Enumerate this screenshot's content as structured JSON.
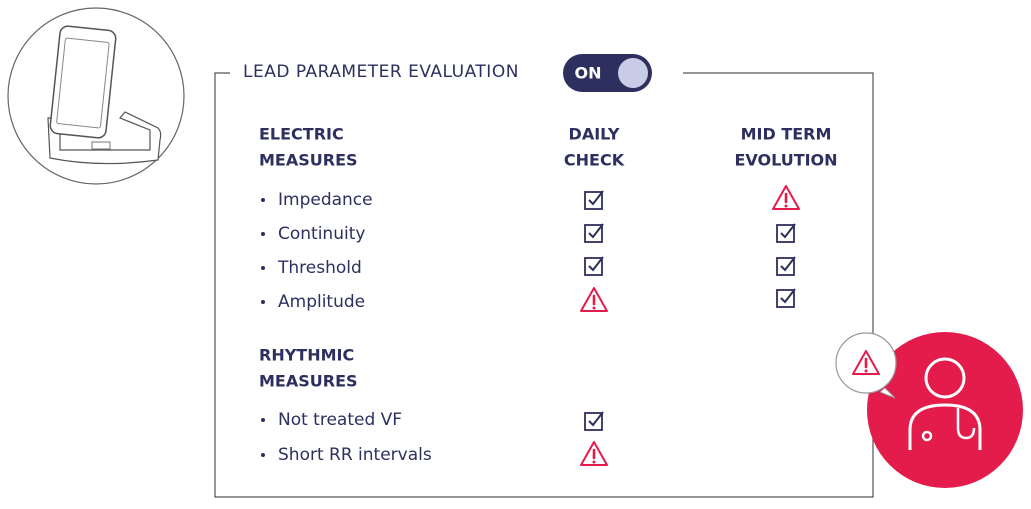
{
  "title": "LEAD PARAMETER EVALUATION",
  "toggle": "ON",
  "columns": [
    [
      "DAILY",
      "CHECK"
    ],
    [
      "MID TERM",
      "EVOLUTION"
    ]
  ],
  "sections": [
    {
      "heading": [
        "ELECTRIC",
        "MEASURES"
      ],
      "items": [
        "Impedance",
        "Continuity",
        "Threshold",
        "Amplitude"
      ]
    },
    {
      "heading": [
        "RHYTHMIC",
        "MEASURES"
      ],
      "items": [
        "Not treated VF",
        "Short RR intervals"
      ]
    }
  ]
}
